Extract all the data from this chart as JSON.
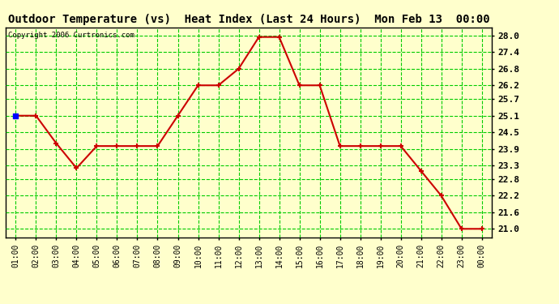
{
  "title": "Outdoor Temperature (vs)  Heat Index (Last 24 Hours)  Mon Feb 13  00:00",
  "copyright": "Copyright 2006 Curtronics.com",
  "x_labels": [
    "01:00",
    "02:00",
    "03:00",
    "04:00",
    "05:00",
    "06:00",
    "07:00",
    "08:00",
    "09:00",
    "10:00",
    "11:00",
    "12:00",
    "13:00",
    "14:00",
    "15:00",
    "16:00",
    "17:00",
    "18:00",
    "19:00",
    "20:00",
    "21:00",
    "22:00",
    "23:00",
    "00:00"
  ],
  "y_values": [
    25.1,
    25.1,
    24.1,
    23.2,
    24.0,
    24.0,
    24.0,
    24.0,
    25.1,
    26.2,
    26.2,
    26.8,
    27.95,
    27.95,
    26.2,
    26.2,
    24.0,
    24.0,
    24.0,
    24.0,
    23.1,
    22.2,
    21.0,
    21.0
  ],
  "line_color": "#cc0000",
  "marker_color": "#cc0000",
  "bg_color": "#ffffcc",
  "grid_color": "#00cc00",
  "border_color": "#000000",
  "title_fontsize": 10,
  "y_ticks": [
    21.0,
    21.6,
    22.2,
    22.8,
    23.3,
    23.9,
    24.5,
    25.1,
    25.7,
    26.2,
    26.8,
    27.4,
    28.0
  ],
  "ylim": [
    20.7,
    28.3
  ],
  "xlim": [
    -0.5,
    23.5
  ]
}
